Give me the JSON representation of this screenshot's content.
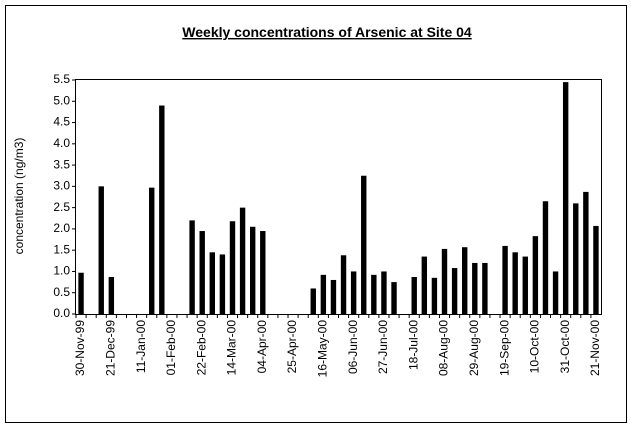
{
  "chart_data": {
    "type": "bar",
    "title": "Weekly concentrations of Arsenic at Site 04",
    "y_label": "concentration (ng/m3)",
    "categories": [
      "30-Nov-99",
      null,
      null,
      "21-Dec-99",
      null,
      null,
      "11-Jan-00",
      null,
      null,
      "01-Feb-00",
      null,
      null,
      "22-Feb-00",
      null,
      null,
      "14-Mar-00",
      null,
      null,
      "04-Apr-00",
      null,
      null,
      "25-Apr-00",
      null,
      null,
      "16-May-00",
      null,
      null,
      "06-Jun-00",
      null,
      null,
      "27-Jun-00",
      null,
      null,
      "18-Jul-00",
      null,
      null,
      "08-Aug-00",
      null,
      null,
      "29-Aug-00",
      null,
      null,
      "19-Sep-00",
      null,
      null,
      "10-Oct-00",
      null,
      null,
      "31-Oct-00",
      null,
      null,
      "21-Nov-00"
    ],
    "values": [
      0.97,
      null,
      3.0,
      0.87,
      null,
      null,
      null,
      2.97,
      4.9,
      null,
      null,
      2.2,
      1.95,
      1.45,
      1.4,
      2.18,
      2.5,
      2.05,
      1.95,
      null,
      null,
      null,
      null,
      0.6,
      0.92,
      0.8,
      1.38,
      1.0,
      3.25,
      0.92,
      1.0,
      0.75,
      null,
      0.87,
      1.35,
      0.85,
      1.53,
      1.08,
      1.57,
      1.2,
      1.2,
      null,
      1.6,
      1.45,
      1.35,
      1.83,
      2.65,
      1.0,
      5.45,
      2.6,
      2.87,
      2.07
    ],
    "color": "#000000",
    "ylim": [
      0,
      5.5
    ],
    "yticks": [
      {
        "value": 0,
        "label": "0.0"
      },
      {
        "value": 0.5,
        "label": "0.5"
      },
      {
        "value": 1,
        "label": "1.0"
      },
      {
        "value": 1.5,
        "label": "1.5"
      },
      {
        "value": 2,
        "label": "2.0"
      },
      {
        "value": 2.5,
        "label": "2.5"
      },
      {
        "value": 3,
        "label": "3.0"
      },
      {
        "value": 3.5,
        "label": "3.5"
      },
      {
        "value": 4,
        "label": "4.0"
      },
      {
        "value": 4.5,
        "label": "4.5"
      },
      {
        "value": 5,
        "label": "5.0"
      },
      {
        "value": 5.5,
        "label": "5.5"
      }
    ],
    "grid": false
  }
}
